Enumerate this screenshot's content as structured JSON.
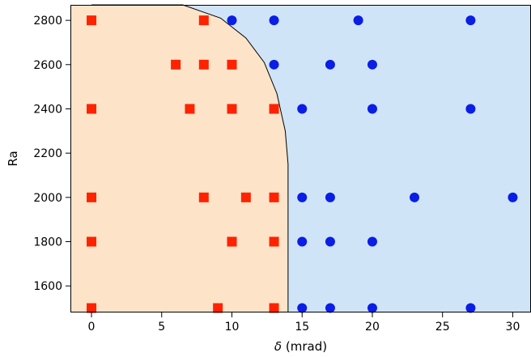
{
  "chart_data": {
    "type": "scatter",
    "xlabel_symbol": "δ",
    "xlabel_unit": " (mrad)",
    "ylabel": "Ra",
    "xlim": [
      -1.5,
      31.3
    ],
    "ylim": [
      1480,
      2870
    ],
    "xticks": [
      0,
      5,
      10,
      15,
      20,
      25,
      30
    ],
    "yticks": [
      1600,
      1800,
      2000,
      2200,
      2400,
      2600,
      2800
    ],
    "grid": false,
    "legend": "none",
    "regions": [
      {
        "color": "#fde4c9",
        "boundary": [
          [
            0,
            2870
          ],
          [
            6.5,
            2870
          ],
          [
            9.2,
            2810
          ],
          [
            11.0,
            2720
          ],
          [
            12.3,
            2610
          ],
          [
            13.2,
            2470
          ],
          [
            13.8,
            2300
          ],
          [
            14.0,
            2150
          ],
          [
            14.0,
            1480
          ]
        ]
      },
      {
        "color": "#d0e4f8"
      }
    ],
    "series": [
      {
        "marker": "square",
        "color": "#ff2200",
        "points": [
          [
            0,
            1500
          ],
          [
            0,
            1800
          ],
          [
            0,
            2000
          ],
          [
            0,
            2400
          ],
          [
            0,
            2800
          ],
          [
            6,
            2600
          ],
          [
            7,
            2400
          ],
          [
            8,
            2000
          ],
          [
            8,
            2600
          ],
          [
            8,
            2800
          ],
          [
            9,
            1500
          ],
          [
            10,
            1800
          ],
          [
            10,
            2400
          ],
          [
            10,
            2600
          ],
          [
            11,
            2000
          ],
          [
            13,
            1500
          ],
          [
            13,
            1800
          ],
          [
            13,
            2000
          ],
          [
            13,
            2400
          ]
        ]
      },
      {
        "marker": "circle",
        "color": "#0a1ee6",
        "points": [
          [
            10,
            2800
          ],
          [
            13,
            2800
          ],
          [
            13,
            2600
          ],
          [
            15,
            2400
          ],
          [
            15,
            2000
          ],
          [
            15,
            1800
          ],
          [
            15,
            1500
          ],
          [
            17,
            2600
          ],
          [
            17,
            2000
          ],
          [
            17,
            1800
          ],
          [
            17,
            1500
          ],
          [
            19,
            2800
          ],
          [
            20,
            2600
          ],
          [
            20,
            2400
          ],
          [
            20,
            1800
          ],
          [
            20,
            1500
          ],
          [
            23,
            2000
          ],
          [
            27,
            2800
          ],
          [
            27,
            2400
          ],
          [
            27,
            1500
          ],
          [
            30,
            2000
          ]
        ]
      }
    ]
  }
}
